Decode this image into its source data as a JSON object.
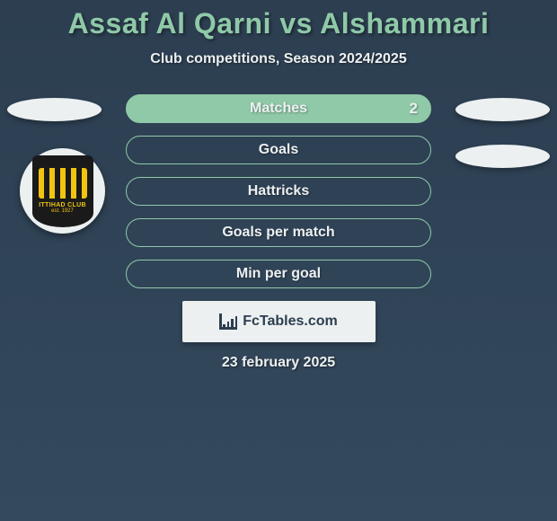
{
  "header": {
    "title": "Assaf Al Qarni vs Alshammari",
    "subtitle": "Club competitions, Season 2024/2025"
  },
  "club_badge": {
    "name": "ITTIHAD CLUB",
    "year": "est. 1927",
    "colors": {
      "primary": "#f1c40f",
      "secondary": "#1a1a1a"
    }
  },
  "stats": [
    {
      "label": "Matches",
      "value": "2",
      "filled": true
    },
    {
      "label": "Goals",
      "value": "",
      "filled": false
    },
    {
      "label": "Hattricks",
      "value": "",
      "filled": false
    },
    {
      "label": "Goals per match",
      "value": "",
      "filled": false
    },
    {
      "label": "Min per goal",
      "value": "",
      "filled": false
    }
  ],
  "brand": {
    "text": "FcTables.com"
  },
  "footer": {
    "date": "23 february 2025"
  },
  "colors": {
    "accent": "#8fc9a8",
    "text_light": "#ecf0f1",
    "bg_top": "#2c3e50",
    "bg_bottom": "#34495e"
  }
}
